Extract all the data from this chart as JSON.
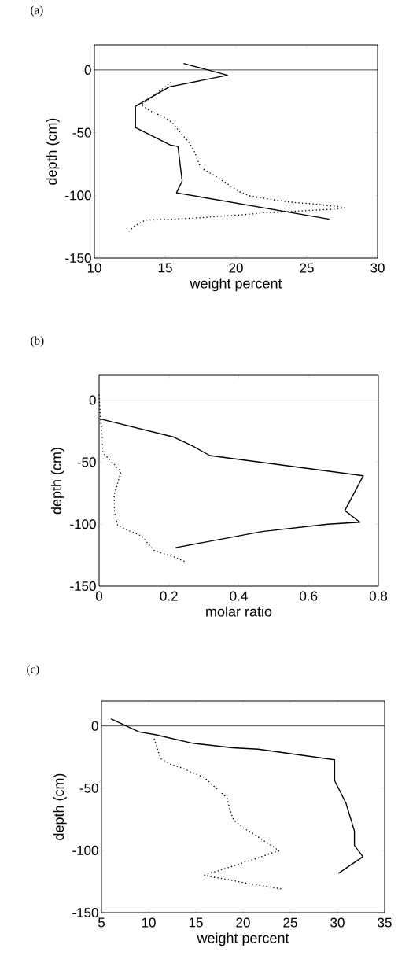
{
  "chart_data": [
    {
      "type": "line",
      "title": "(a)",
      "xlabel": "weight percent",
      "ylabel": "depth (cm)",
      "xlim": [
        10,
        30
      ],
      "ylim": [
        -150,
        20
      ],
      "xticks": [
        10,
        15,
        20,
        25,
        30
      ],
      "yticks": [
        -150,
        -100,
        -50,
        0
      ],
      "ref_lines": [
        {
          "axis": "y",
          "value": 0
        }
      ],
      "series": [
        {
          "color": "#000000",
          "line_style": "solid",
          "x": [
            16.3,
            19.4,
            15.3,
            12.9,
            12.9,
            15.4,
            15.9,
            16.2,
            15.8,
            26.6
          ],
          "values": [
            5.2,
            -4.2,
            -13.5,
            -29,
            -46,
            -60,
            -61,
            -88.5,
            -98,
            -119
          ]
        },
        {
          "color": "#000000",
          "line_style": "dotted",
          "x": [
            15.4,
            14.7,
            13.3,
            14.0,
            14.8,
            15.5,
            16.0,
            16.7,
            17.1,
            17.5,
            18.3,
            19.0,
            19.7,
            20.3,
            21.0,
            22.6,
            24.0,
            25.6,
            27.2,
            27.8,
            27.0,
            25.3,
            23.6,
            21.9,
            20.4,
            18.8,
            17.3,
            15.7,
            13.6,
            12.9,
            12.3
          ],
          "values": [
            -10,
            -16,
            -28,
            -33,
            -37,
            -42,
            -49,
            -58,
            -66,
            -78,
            -83,
            -88,
            -93,
            -97.5,
            -100.6,
            -103.5,
            -105.6,
            -107,
            -109,
            -110,
            -111,
            -112,
            -113,
            -114,
            -115.6,
            -116.7,
            -118,
            -118.8,
            -119.8,
            -124,
            -130
          ]
        }
      ]
    },
    {
      "type": "line",
      "title": "(b)",
      "xlabel": "molar ratio",
      "ylabel": "depth (cm)",
      "xlim": [
        0,
        0.8
      ],
      "ylim": [
        -150,
        20
      ],
      "xticks": [
        0,
        0.2,
        0.4,
        0.6,
        0.8
      ],
      "yticks": [
        -150,
        -100,
        -50,
        0
      ],
      "ref_lines": [
        {
          "axis": "y",
          "value": 0
        }
      ],
      "series": [
        {
          "color": "#000000",
          "line_style": "solid",
          "x": [
            0,
            0.214,
            0.268,
            0.317,
            0.757,
            0.704,
            0.747,
            0.655,
            0.467,
            0.219
          ],
          "values": [
            -15,
            -29.8,
            -37,
            -44.7,
            -61,
            -89,
            -98.5,
            -100,
            -106,
            -119
          ]
        },
        {
          "color": "#000000",
          "line_style": "dotted",
          "x": [
            0,
            0.003,
            0.005,
            0.009,
            0.011,
            0.032,
            0.058,
            0.062,
            0.052,
            0.043,
            0.044,
            0.053,
            0.08,
            0.122,
            0.156,
            0.186,
            0.216,
            0.247
          ],
          "values": [
            4,
            -10.6,
            -19,
            -30,
            -42.6,
            -48.5,
            -56,
            -58.5,
            -68,
            -76.6,
            -90,
            -101,
            -104.7,
            -109.6,
            -121,
            -124,
            -126.6,
            -130.4
          ]
        }
      ]
    },
    {
      "type": "line",
      "title": "(c)",
      "xlabel": "weight percent",
      "ylabel": "depth (cm)",
      "xlim": [
        5,
        35
      ],
      "ylim": [
        -150,
        20
      ],
      "xticks": [
        5,
        10,
        15,
        20,
        25,
        30,
        35
      ],
      "yticks": [
        -150,
        -100,
        -50,
        0
      ],
      "ref_lines": [
        {
          "axis": "y",
          "value": 0
        }
      ],
      "series": [
        {
          "color": "#000000",
          "line_style": "solid",
          "x": [
            6.0,
            9.0,
            10.7,
            14.7,
            18.9,
            21.6,
            29.7,
            29.7,
            30.9,
            31.8,
            31.8,
            32.7,
            30.1
          ],
          "values": [
            5.7,
            -4.9,
            -7,
            -14,
            -17.6,
            -18.7,
            -27.2,
            -44,
            -62,
            -84.5,
            -96,
            -105,
            -118.5
          ]
        },
        {
          "color": "#000000",
          "line_style": "dotted",
          "x": [
            10.6,
            10.9,
            11.3,
            12.4,
            13.6,
            14.7,
            15.9,
            16.8,
            17.7,
            18.3,
            18.6,
            19.0,
            20.1,
            21.2,
            22.2,
            23.2,
            23.8,
            22.7,
            21.6,
            20.4,
            18.9,
            17.8,
            16.6,
            15.9,
            17.0,
            18.1,
            19.3,
            20.5,
            21.7,
            22.9,
            24.1
          ],
          "values": [
            -10.6,
            -18,
            -26.5,
            -31,
            -34,
            -37.8,
            -41.4,
            -47.8,
            -53.7,
            -58,
            -67,
            -75.6,
            -82.4,
            -87,
            -92.4,
            -97,
            -100.4,
            -103,
            -106,
            -109,
            -112.7,
            -115.3,
            -118,
            -120,
            -121.7,
            -123,
            -124.8,
            -126.5,
            -128,
            -129.5,
            -131
          ]
        }
      ]
    }
  ]
}
